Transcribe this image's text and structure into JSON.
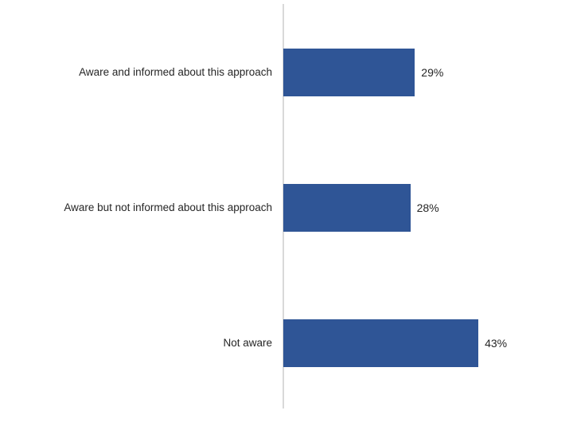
{
  "chart_data": {
    "type": "bar",
    "orientation": "horizontal",
    "title": "",
    "xlabel": "",
    "ylabel": "",
    "categories": [
      "Aware and informed about this approach",
      "Aware but not informed about this approach",
      "Not aware"
    ],
    "values": [
      29,
      28,
      43
    ],
    "value_labels": [
      "29%",
      "28%",
      "43%"
    ],
    "value_suffix": "%",
    "bar_color": "#2f5596",
    "axis_line_color": "#d9d9d9",
    "text_color": "#262626",
    "background_color": "#ffffff",
    "grid": false,
    "legend": "none",
    "data_labels_visible": true,
    "data_labels_position": "outside-end"
  }
}
